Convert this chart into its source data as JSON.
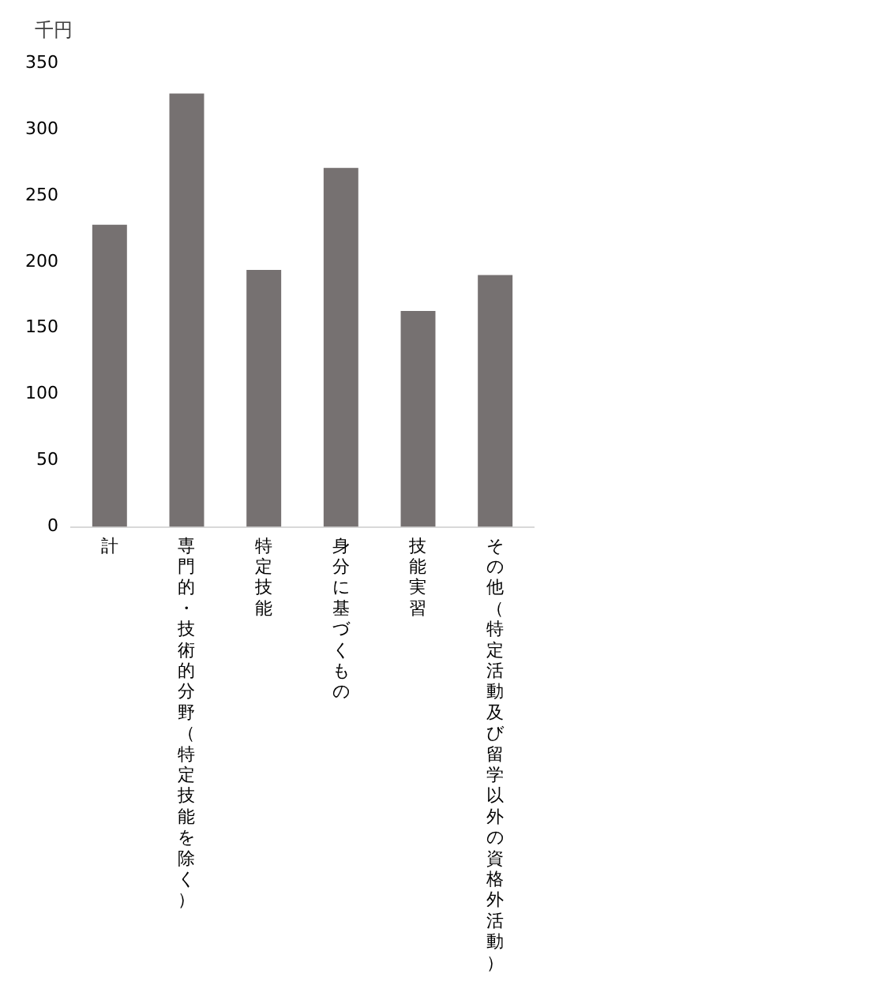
{
  "chart_data": {
    "type": "bar",
    "ylabel": "千円",
    "categories": [
      "計",
      "専門的・技術的分野（特定技能を除く）",
      "特定技能",
      "身分に基づくもの",
      "技能実習",
      "その他（特定活動及び留学以外の資格外活動）"
    ],
    "values": [
      228,
      327,
      194,
      271,
      163,
      190
    ],
    "color": "#767171",
    "ylim": [
      0,
      350
    ],
    "yticks": [
      0,
      50,
      100,
      150,
      200,
      250,
      300,
      350
    ],
    "grid": false,
    "legend": false
  }
}
